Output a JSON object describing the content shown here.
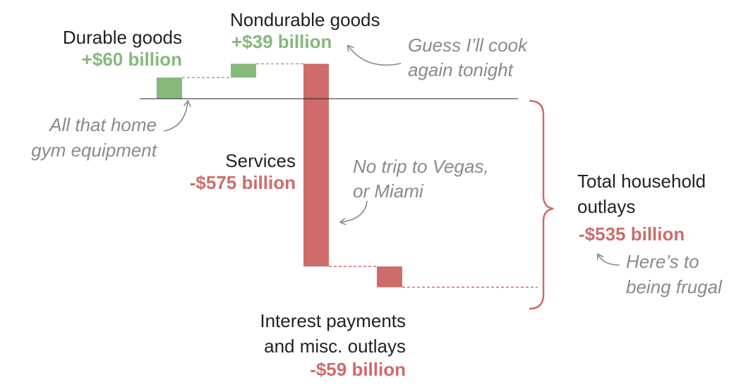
{
  "chart_data": {
    "type": "waterfall",
    "colors": {
      "positive": "#86b97a",
      "negative": "#cf6b6a",
      "axis": "#222222",
      "annotation": "#8a8a8a"
    },
    "steps": [
      {
        "name": "Durable goods",
        "value": 60,
        "value_label": "+$60 billion"
      },
      {
        "name": "Nondurable goods",
        "value": 39,
        "value_label": "+$39 billion"
      },
      {
        "name": "Services",
        "value": -575,
        "value_label": "-$575 billion"
      },
      {
        "name": "Interest payments",
        "name_line2": "and misc. outlays",
        "value": -59,
        "value_label": "-$59 billion"
      }
    ],
    "total": {
      "name": "Total household",
      "name_line2": "outlays",
      "value": -535,
      "value_label": "-$535 billion"
    },
    "annotations": {
      "durable": [
        "All that home",
        "gym equipment"
      ],
      "nondurable": [
        "Guess I’ll cook",
        "again tonight"
      ],
      "services": [
        "No trip to Vegas,",
        "or Miami"
      ],
      "total": [
        "Here’s to",
        "being frugal"
      ]
    }
  }
}
